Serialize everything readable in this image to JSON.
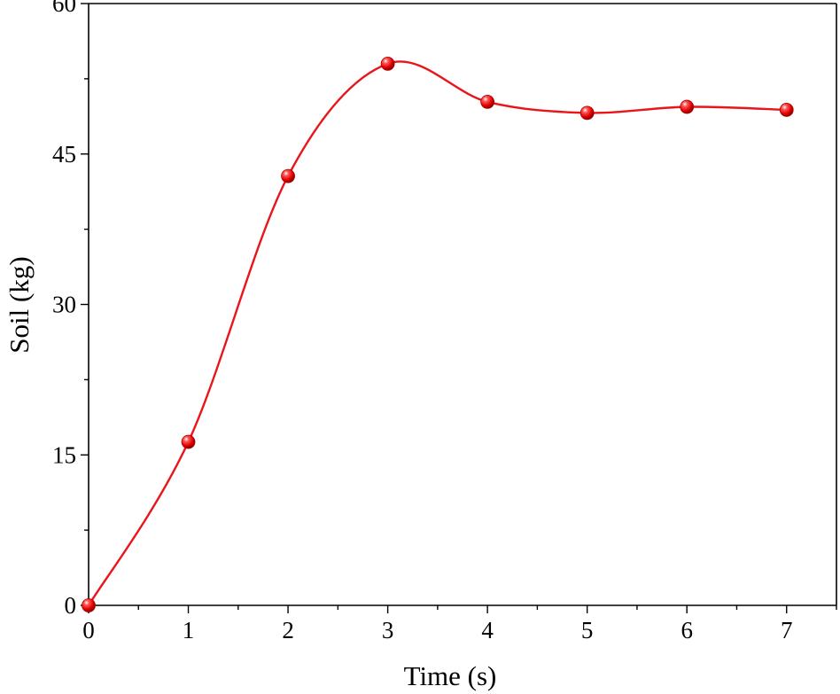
{
  "chart_data": {
    "type": "line",
    "title": "",
    "xlabel": "Time (s)",
    "ylabel": "Soil (kg)",
    "xlim": [
      0,
      7.5
    ],
    "ylim": [
      0,
      60
    ],
    "xticks": [
      0,
      1,
      2,
      3,
      4,
      5,
      6,
      7
    ],
    "yticks": [
      0,
      15,
      30,
      45,
      60
    ],
    "grid": false,
    "legend": "none",
    "series": [
      {
        "color": "#e8151b",
        "marker": "sphere",
        "smooth": true,
        "x": [
          0,
          1,
          2,
          3,
          4,
          5,
          6,
          7
        ],
        "y": [
          0,
          16.3,
          42.8,
          54.0,
          50.2,
          49.1,
          49.7,
          49.4
        ]
      }
    ]
  }
}
